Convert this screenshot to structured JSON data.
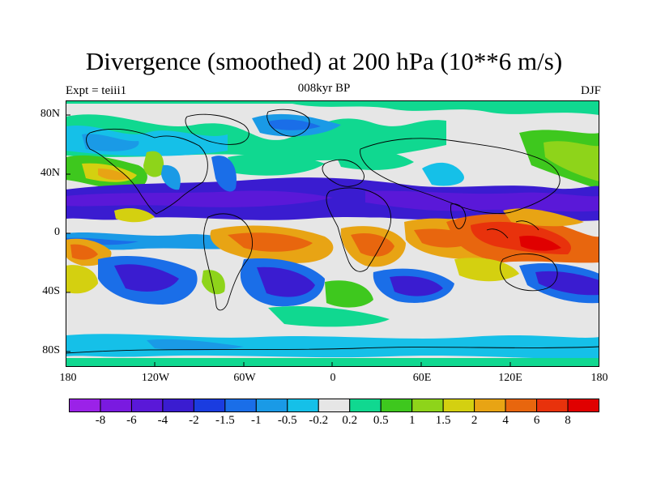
{
  "title": "Divergence (smoothed) at 200 hPa (10**6 m/s)",
  "left_label": "Expt = teiii1",
  "center_label": "008kyr BP",
  "right_label": "DJF",
  "y_ticks": [
    "80N",
    "40N",
    "0",
    "40S",
    "80S"
  ],
  "x_ticks": [
    "180",
    "120W",
    "60W",
    "0",
    "60E",
    "120E",
    "180"
  ],
  "legend": {
    "labels": [
      "-8",
      "-6",
      "-4",
      "-2",
      "-1.5",
      "-1",
      "-0.5",
      "-0.2",
      "0.2",
      "0.5",
      "1",
      "1.5",
      "2",
      "4",
      "6",
      "8"
    ],
    "colors": [
      "#9b22e8",
      "#7a1ae0",
      "#5a18d8",
      "#3a1cd0",
      "#1a3ce0",
      "#1a6ee8",
      "#1a9ae6",
      "#15c0e8",
      "#e6e6e6",
      "#10d890",
      "#3ec81e",
      "#8ed41a",
      "#d4d010",
      "#e8a414",
      "#e8660e",
      "#e8320c",
      "#e00000"
    ]
  },
  "map_colors": {
    "neutral": "#e6e6e6",
    "land_outline": "#000000"
  }
}
